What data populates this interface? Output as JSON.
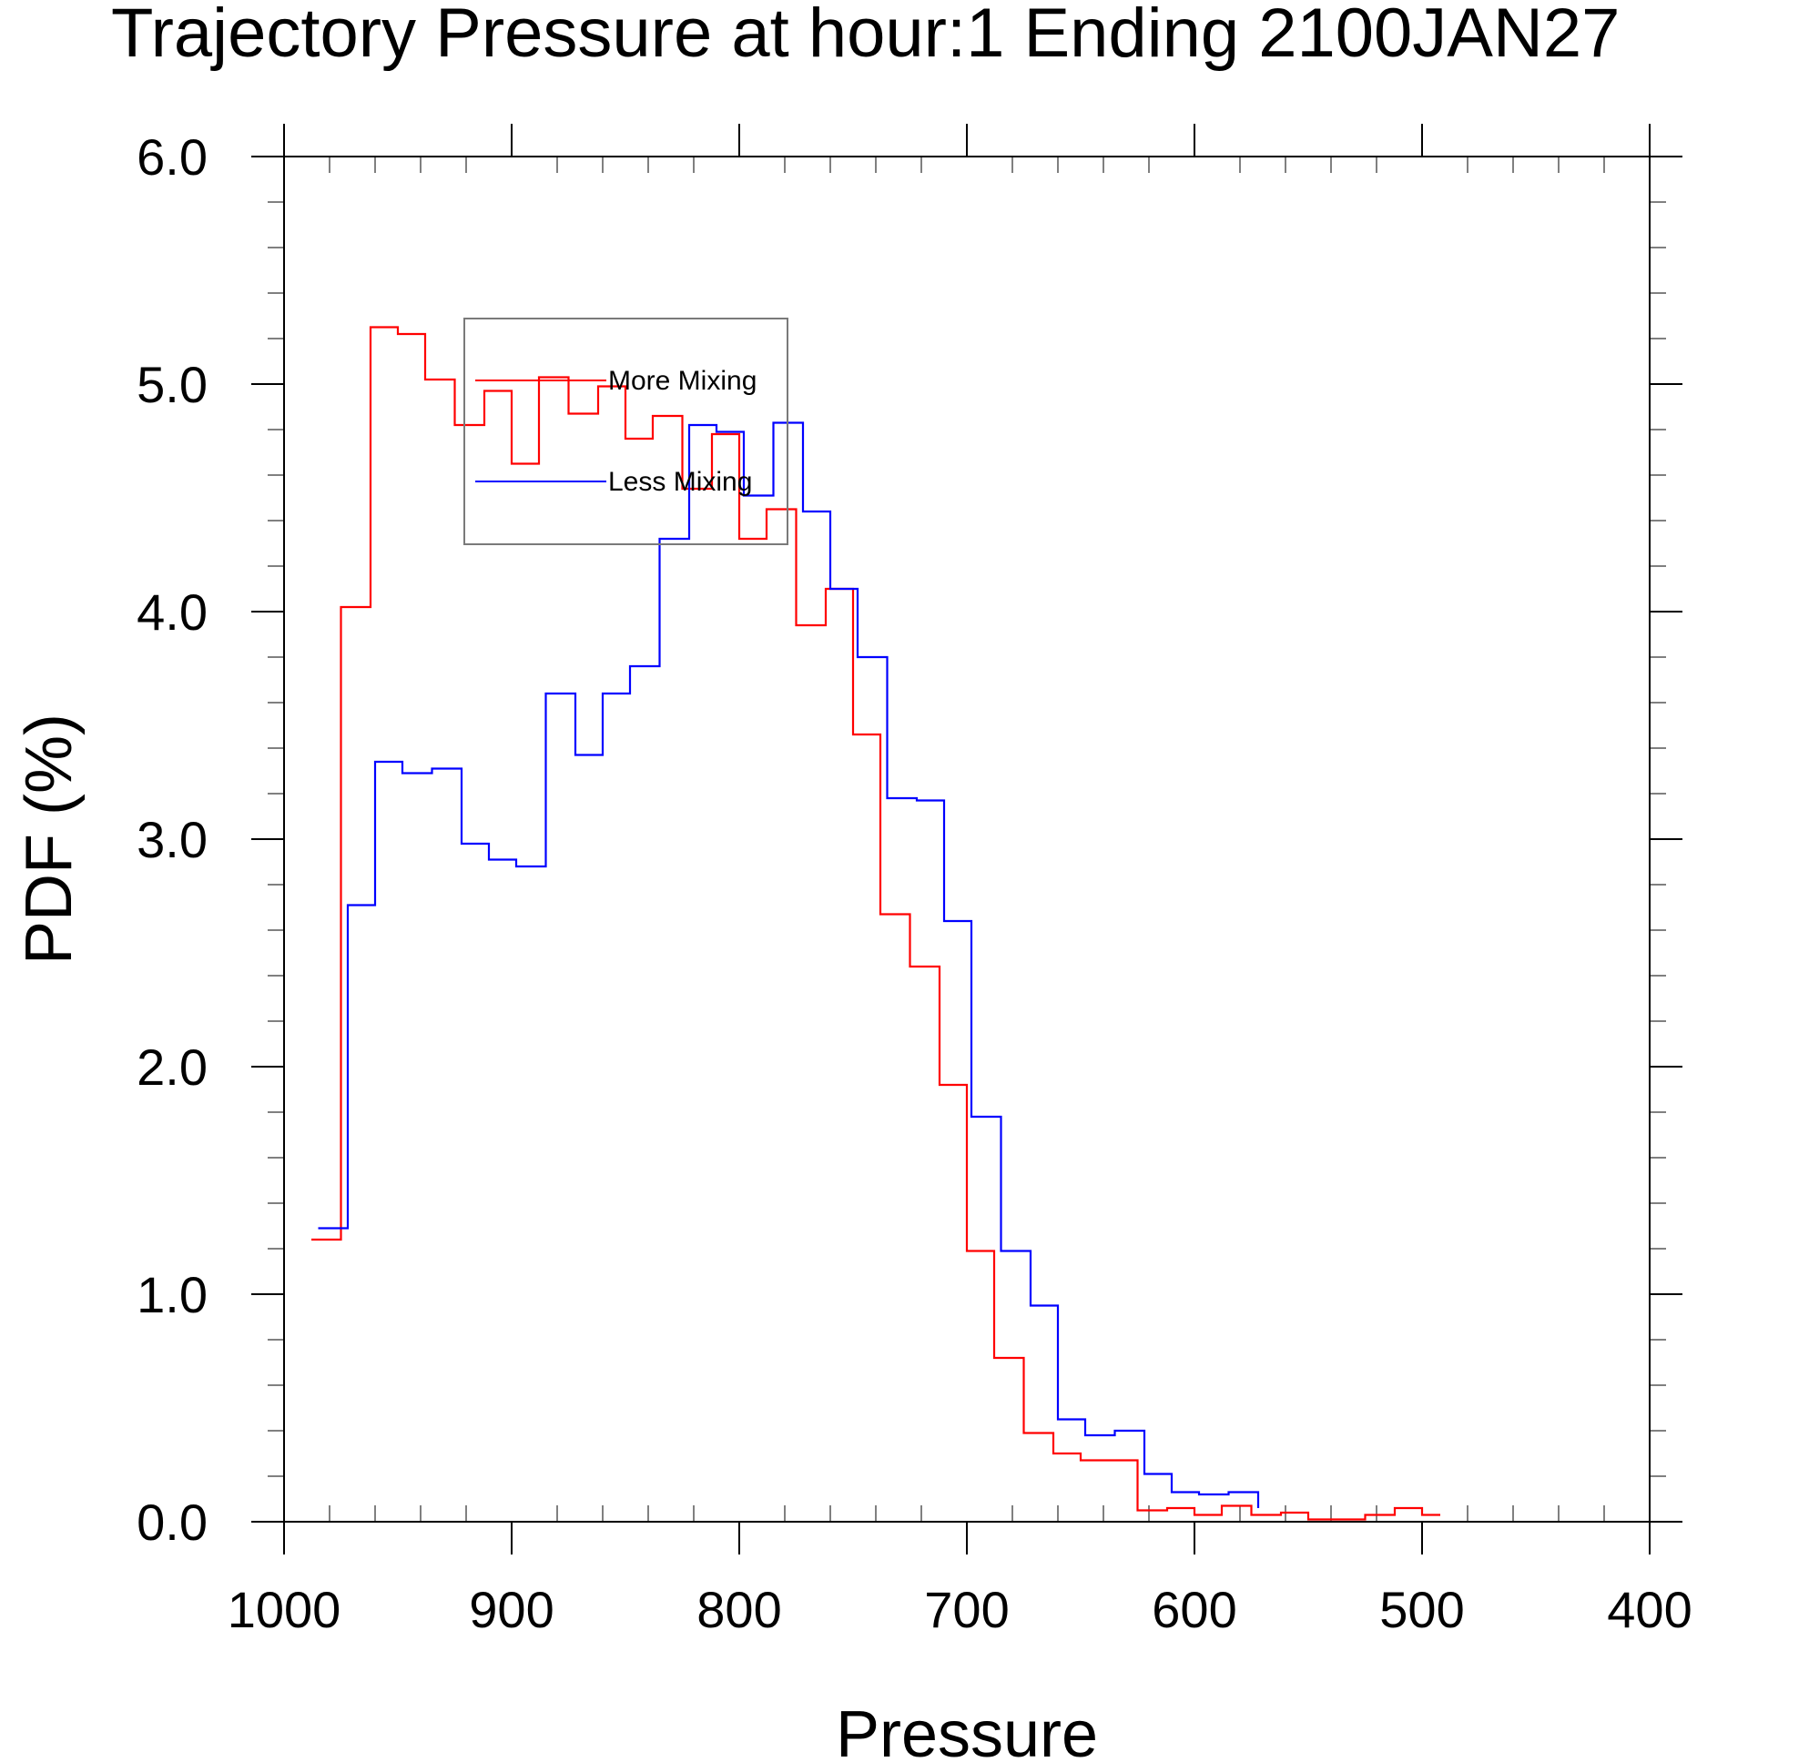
{
  "chart_data": {
    "type": "line",
    "step": true,
    "title": "Trajectory Pressure at hour:1 Ending 2100JAN27",
    "xlabel": "Pressure",
    "ylabel": "PDF (%)",
    "xlim": [
      1000,
      400
    ],
    "x_reversed": true,
    "ylim": [
      0,
      6
    ],
    "x_ticks": [
      1000,
      900,
      800,
      700,
      600,
      500,
      400
    ],
    "x_tick_labels": [
      "1000",
      "900",
      "800",
      "700",
      "600",
      "500",
      "400"
    ],
    "y_ticks": [
      0,
      1,
      2,
      3,
      4,
      5,
      6
    ],
    "y_tick_labels": [
      "0.0",
      "1.0",
      "2.0",
      "3.0",
      "4.0",
      "5.0",
      "6.0"
    ],
    "grid": false,
    "legend": "boxed, upper center",
    "series": [
      {
        "name": "More Mixing",
        "color": "#ff0000",
        "x": [
          988,
          975,
          962,
          950,
          938,
          925,
          912,
          900,
          888,
          875,
          862,
          850,
          838,
          825,
          812,
          800,
          788,
          775,
          762,
          750,
          738,
          725,
          712,
          700,
          688,
          675,
          662,
          650,
          638,
          625,
          612,
          600,
          588,
          575,
          562,
          550,
          538,
          525,
          512,
          500,
          492
        ],
        "y": [
          1.24,
          4.02,
          5.25,
          5.22,
          5.02,
          4.82,
          4.97,
          4.65,
          5.03,
          4.87,
          4.99,
          4.76,
          4.86,
          4.54,
          4.78,
          4.32,
          4.45,
          3.94,
          4.1,
          3.46,
          2.67,
          2.44,
          1.92,
          1.19,
          0.72,
          0.39,
          0.3,
          0.27,
          0.27,
          0.05,
          0.06,
          0.03,
          0.07,
          0.03,
          0.04,
          0.01,
          0.01,
          0.03,
          0.06,
          0.03,
          0.03
        ]
      },
      {
        "name": "Less Mixing",
        "color": "#0000ff",
        "x": [
          985,
          972,
          960,
          948,
          935,
          922,
          910,
          898,
          885,
          872,
          860,
          848,
          835,
          822,
          810,
          798,
          785,
          772,
          760,
          748,
          735,
          722,
          710,
          698,
          685,
          672,
          660,
          648,
          635,
          622,
          610,
          598,
          585,
          572
        ],
        "y": [
          1.29,
          2.71,
          3.34,
          3.29,
          3.31,
          2.98,
          2.91,
          2.88,
          3.64,
          3.37,
          3.64,
          3.76,
          4.32,
          4.82,
          4.79,
          4.51,
          4.83,
          4.44,
          4.1,
          3.8,
          3.18,
          3.17,
          2.64,
          1.78,
          1.19,
          0.95,
          0.45,
          0.38,
          0.4,
          0.21,
          0.13,
          0.12,
          0.13,
          0.06
        ]
      }
    ]
  }
}
